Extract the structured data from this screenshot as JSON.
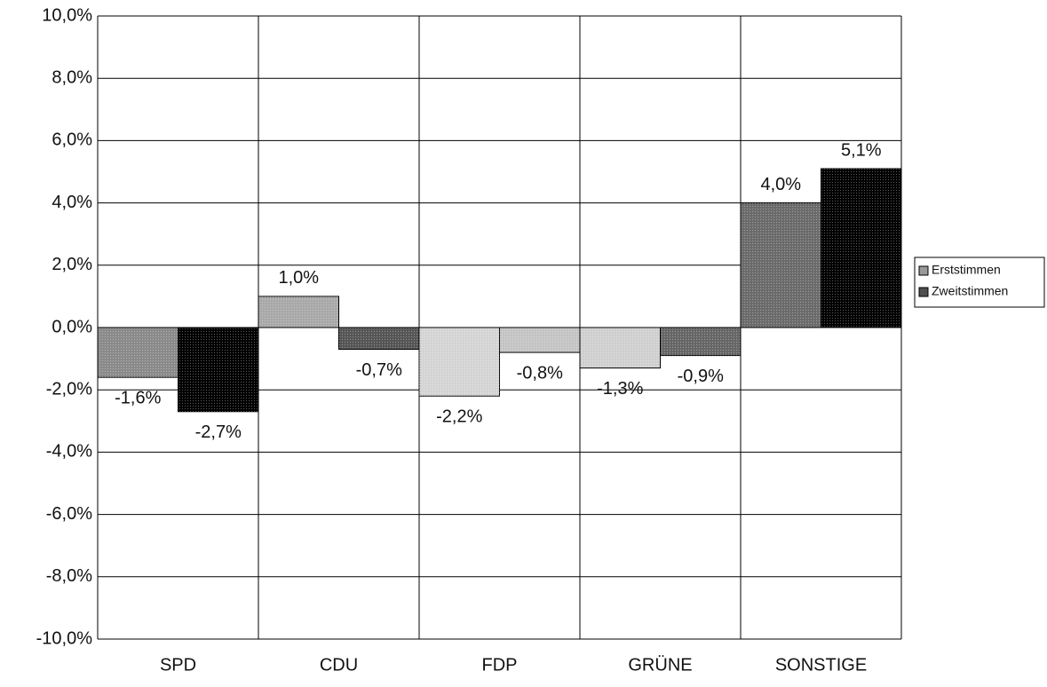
{
  "chart_data": {
    "type": "bar",
    "categories": [
      "SPD",
      "CDU",
      "FDP",
      "GRÜNE",
      "SONSTIGE"
    ],
    "series": [
      {
        "name": "Erststimmen",
        "color": "#9a9a9a",
        "colors": [
          "#8a8a8a",
          "#a8a8a8",
          "#d4d4d4",
          "#cfcfcf",
          "#6a6a6a"
        ],
        "values": [
          -1.6,
          1.0,
          -2.2,
          -1.3,
          4.0
        ],
        "value_labels": [
          "-1,6%",
          "1,0%",
          "-2,2%",
          "-1,3%",
          "4,0%"
        ]
      },
      {
        "name": "Zweitstimmen",
        "color": "#505050",
        "colors": [
          "#000000",
          "#555555",
          "#c4c4c4",
          "#666666",
          "#000000"
        ],
        "values": [
          -2.7,
          -0.7,
          -0.8,
          -0.9,
          5.1
        ],
        "value_labels": [
          "-2,7%",
          "-0,7%",
          "-0,8%",
          "-0,9%",
          "5,1%"
        ]
      }
    ],
    "ylim": [
      -10,
      10
    ],
    "yticks": [
      {
        "value": -10,
        "label": "-10,0%"
      },
      {
        "value": -8,
        "label": "-8,0%"
      },
      {
        "value": -6,
        "label": "-6,0%"
      },
      {
        "value": -4,
        "label": "-4,0%"
      },
      {
        "value": -2,
        "label": "-2,0%"
      },
      {
        "value": 0,
        "label": "0,0%"
      },
      {
        "value": 2,
        "label": "2,0%"
      },
      {
        "value": 4,
        "label": "4,0%"
      },
      {
        "value": 6,
        "label": "6,0%"
      },
      {
        "value": 8,
        "label": "8,0%"
      },
      {
        "value": 10,
        "label": "10,0%"
      }
    ],
    "grid": true,
    "legend": "right"
  }
}
